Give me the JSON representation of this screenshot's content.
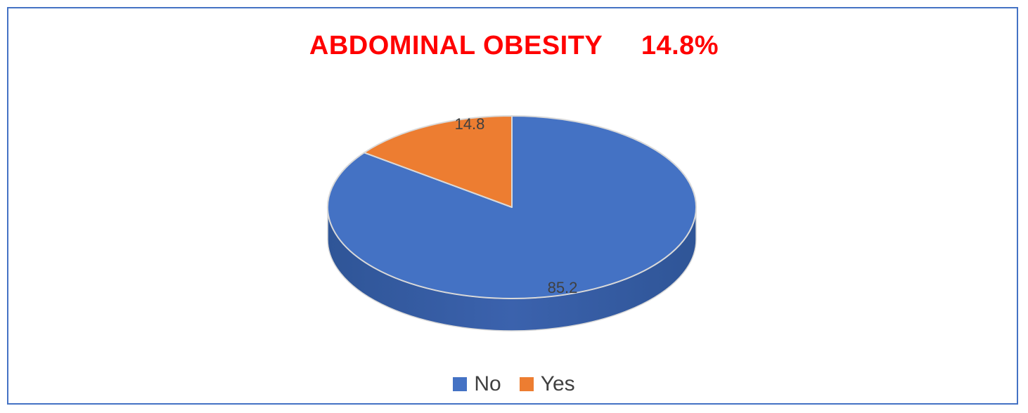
{
  "chart_data": {
    "type": "pie",
    "title": "ABDOMINAL OBESITY     14.8%",
    "categories": [
      "No",
      "Yes"
    ],
    "values": [
      85.2,
      14.8
    ],
    "data_labels": [
      "85.2",
      "14.8"
    ],
    "colors": [
      "#4472c4",
      "#ed7d31"
    ],
    "legend_position": "bottom",
    "style": "3d"
  },
  "colors": {
    "title": "#ff0000",
    "frame": "#4472c4"
  }
}
